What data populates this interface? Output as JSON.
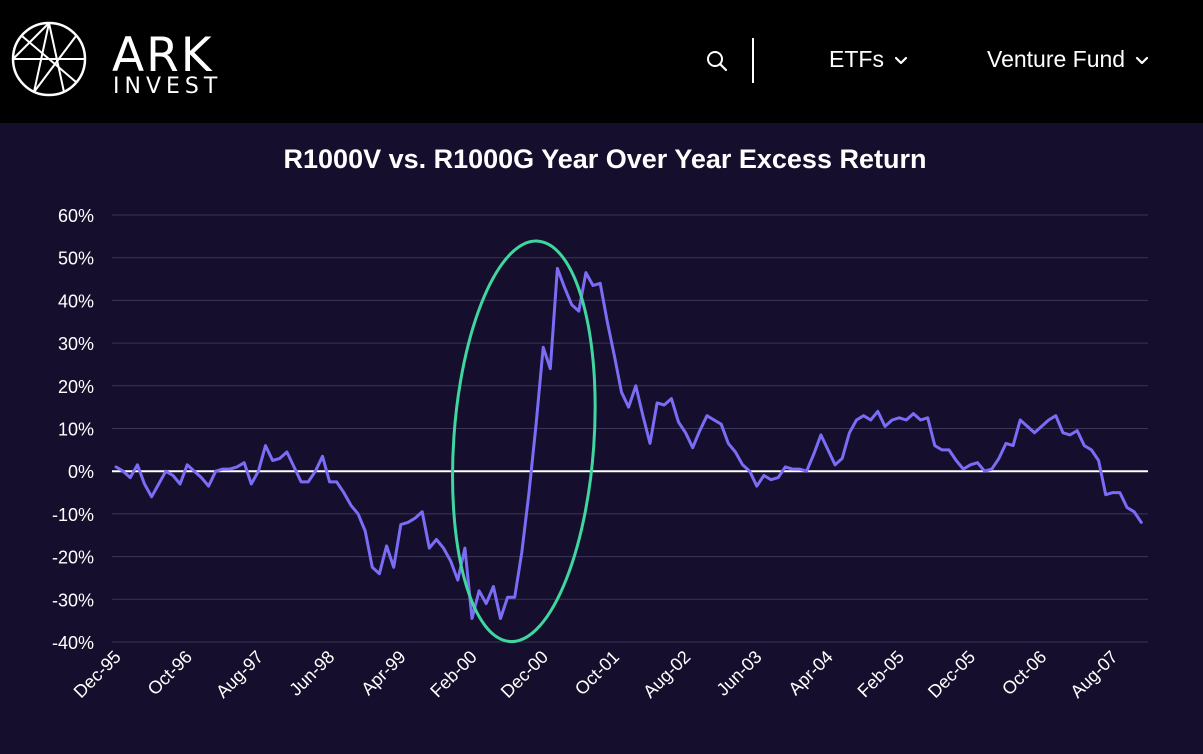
{
  "header": {
    "brand_main": "ARK",
    "brand_sub": "INVEST",
    "nav": [
      {
        "label": "ETFs"
      },
      {
        "label": "Venture Fund"
      }
    ]
  },
  "colors": {
    "background": "#150f2d",
    "header": "#000000",
    "line": "#7b6cf6",
    "highlight": "#3fd6a0",
    "zero_line": "#ffffff",
    "grid": "#3b3557"
  },
  "icons": {
    "search": "search-icon",
    "chevron": "chevron-down-icon",
    "logo": "ark-logo-icon"
  },
  "chart_data": {
    "type": "line",
    "title": "R1000V vs. R1000G Year Over Year Excess Return",
    "xlabel": "",
    "ylabel": "",
    "ylim": [
      -40,
      60
    ],
    "yticks": [
      -40,
      -30,
      -20,
      -10,
      0,
      10,
      20,
      30,
      40,
      50,
      60
    ],
    "ytick_labels": [
      "-40%",
      "-30%",
      "-20%",
      "-10%",
      "0%",
      "10%",
      "20%",
      "30%",
      "40%",
      "50%",
      "60%"
    ],
    "xtick_labels": [
      "Dec-95",
      "Oct-96",
      "Aug-97",
      "Jun-98",
      "Apr-99",
      "Feb-00",
      "Dec-00",
      "Oct-01",
      "Aug-02",
      "Jun-03",
      "Apr-04",
      "Feb-05",
      "Dec-05",
      "Oct-06",
      "Aug-07"
    ],
    "x_start": "Dec-95",
    "months_per_tick": 10,
    "grid": true,
    "highlight": {
      "shape": "ellipse",
      "from_month": 48,
      "to_month": 66,
      "y_range": [
        -40,
        54
      ]
    },
    "series": [
      {
        "name": "R1000V vs. R1000G YoY Excess Return",
        "values": [
          1,
          0,
          -1.5,
          1.5,
          -3,
          -6,
          -3,
          0,
          -1,
          -3,
          1.5,
          0,
          -1.5,
          -3.5,
          0,
          0.5,
          0.5,
          1,
          2,
          -3,
          0,
          6,
          2.5,
          3,
          4.5,
          1,
          -2.5,
          -2.5,
          0,
          3.5,
          -2.5,
          -2.5,
          -5,
          -8,
          -10,
          -14,
          -22.5,
          -24,
          -17.5,
          -22.5,
          -12.5,
          -12,
          -11,
          -9.5,
          -18,
          -16,
          -18,
          -21,
          -25.5,
          -18,
          -34.5,
          -28,
          -31,
          -27,
          -34.5,
          -29.5,
          -29.5,
          -19,
          -5,
          11,
          29,
          24,
          47.5,
          43,
          39,
          37.5,
          46.5,
          43.5,
          44,
          35,
          27,
          18.5,
          15,
          20,
          13,
          6.5,
          16,
          15.5,
          17,
          11.5,
          9,
          5.5,
          9.5,
          13,
          12,
          11,
          6.5,
          4.5,
          1.5,
          0,
          -3.5,
          -1,
          -2,
          -1.5,
          1,
          0.5,
          0.5,
          0,
          4,
          8.5,
          5,
          1.5,
          3,
          9,
          12,
          13,
          12,
          14,
          10.5,
          12,
          12.5,
          12,
          13.5,
          12,
          12.5,
          6,
          5,
          5,
          2.5,
          0.5,
          1.5,
          2,
          0,
          0.5,
          3,
          6.5,
          6,
          12,
          10.5,
          9,
          10.5,
          12,
          13,
          9,
          8.5,
          9.5,
          6,
          5,
          2.5,
          -5.5,
          -5,
          -5,
          -8.5,
          -9.5,
          -12
        ]
      }
    ]
  }
}
